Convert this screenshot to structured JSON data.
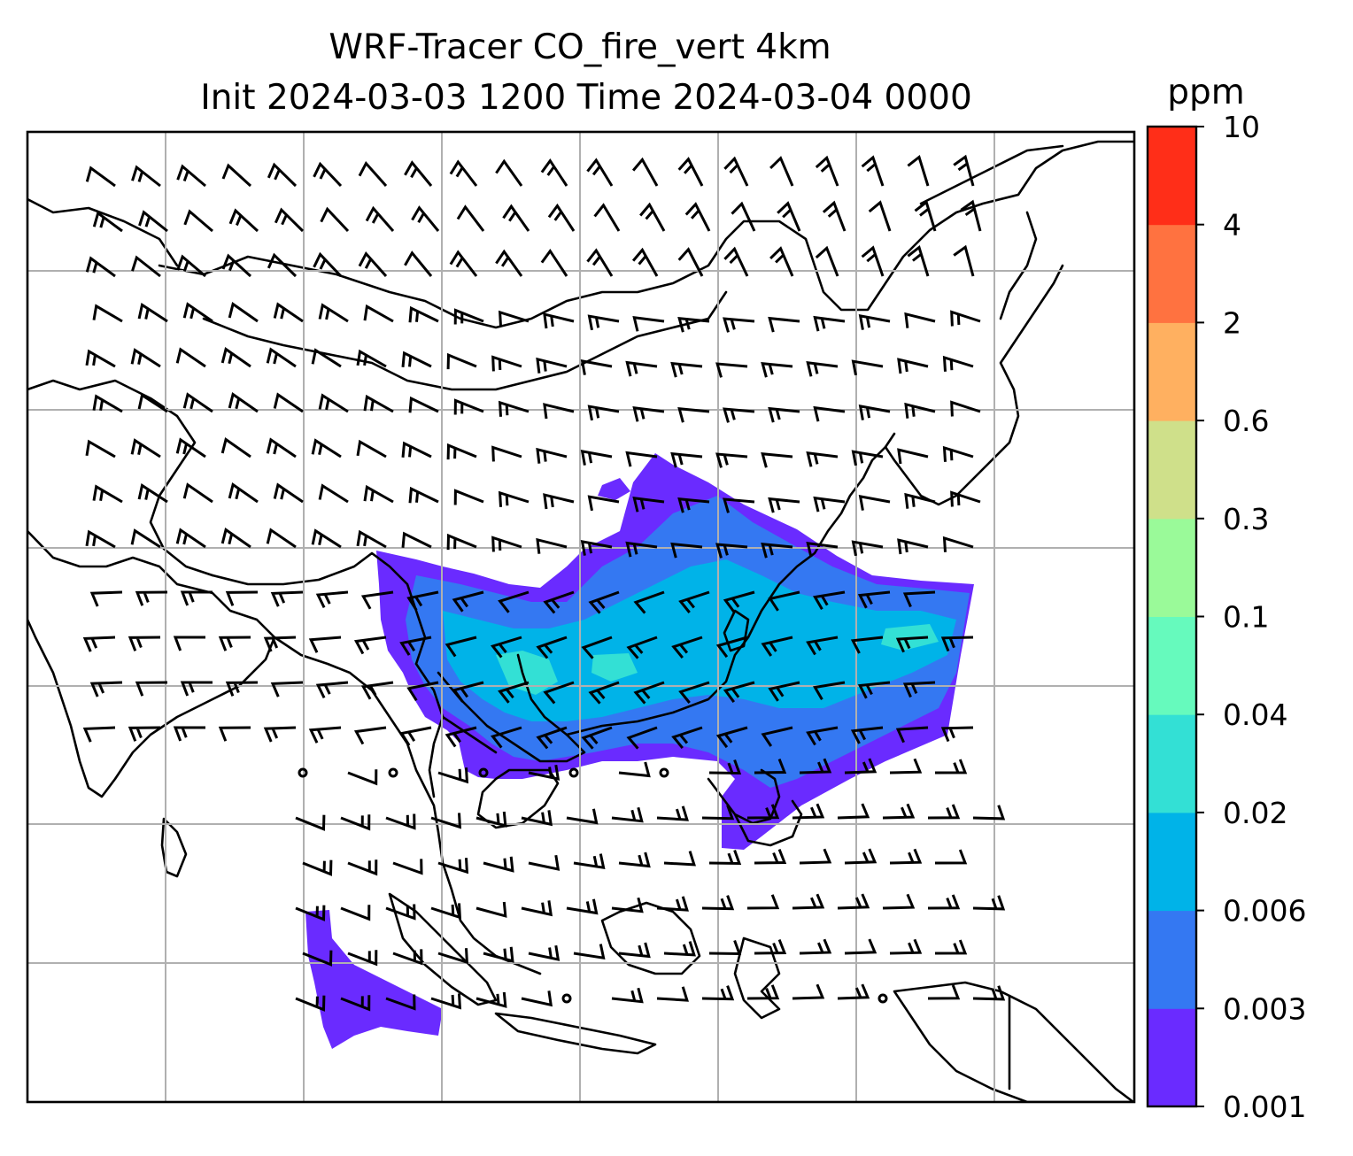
{
  "title": {
    "line1": "WRF-Tracer CO_fire_vert 4km",
    "line2": "Init 2024-03-03 1200 Time 2024-03-04 0000"
  },
  "colorbar": {
    "unit_label": "ppm",
    "levels": [
      "0.001",
      "0.003",
      "0.006",
      "0.02",
      "0.04",
      "0.1",
      "0.3",
      "0.6",
      "2",
      "4",
      "10"
    ],
    "colors": [
      "#6a2bff",
      "#3478f2",
      "#00b3e8",
      "#33e0d5",
      "#66fabd",
      "#9afa99",
      "#cfe08a",
      "#ffb060",
      "#ff7240",
      "#ff2e18"
    ]
  },
  "colors": {
    "grid": "#b0b0b0",
    "coastline": "#000000",
    "barb": "#000000"
  },
  "map": {
    "projection": "lat-lon",
    "gridlines": true,
    "tick_labels_shown": false,
    "fields": [
      "CO fire tracer concentration (filled contours)",
      "wind barbs",
      "coastlines",
      "country borders"
    ]
  }
}
